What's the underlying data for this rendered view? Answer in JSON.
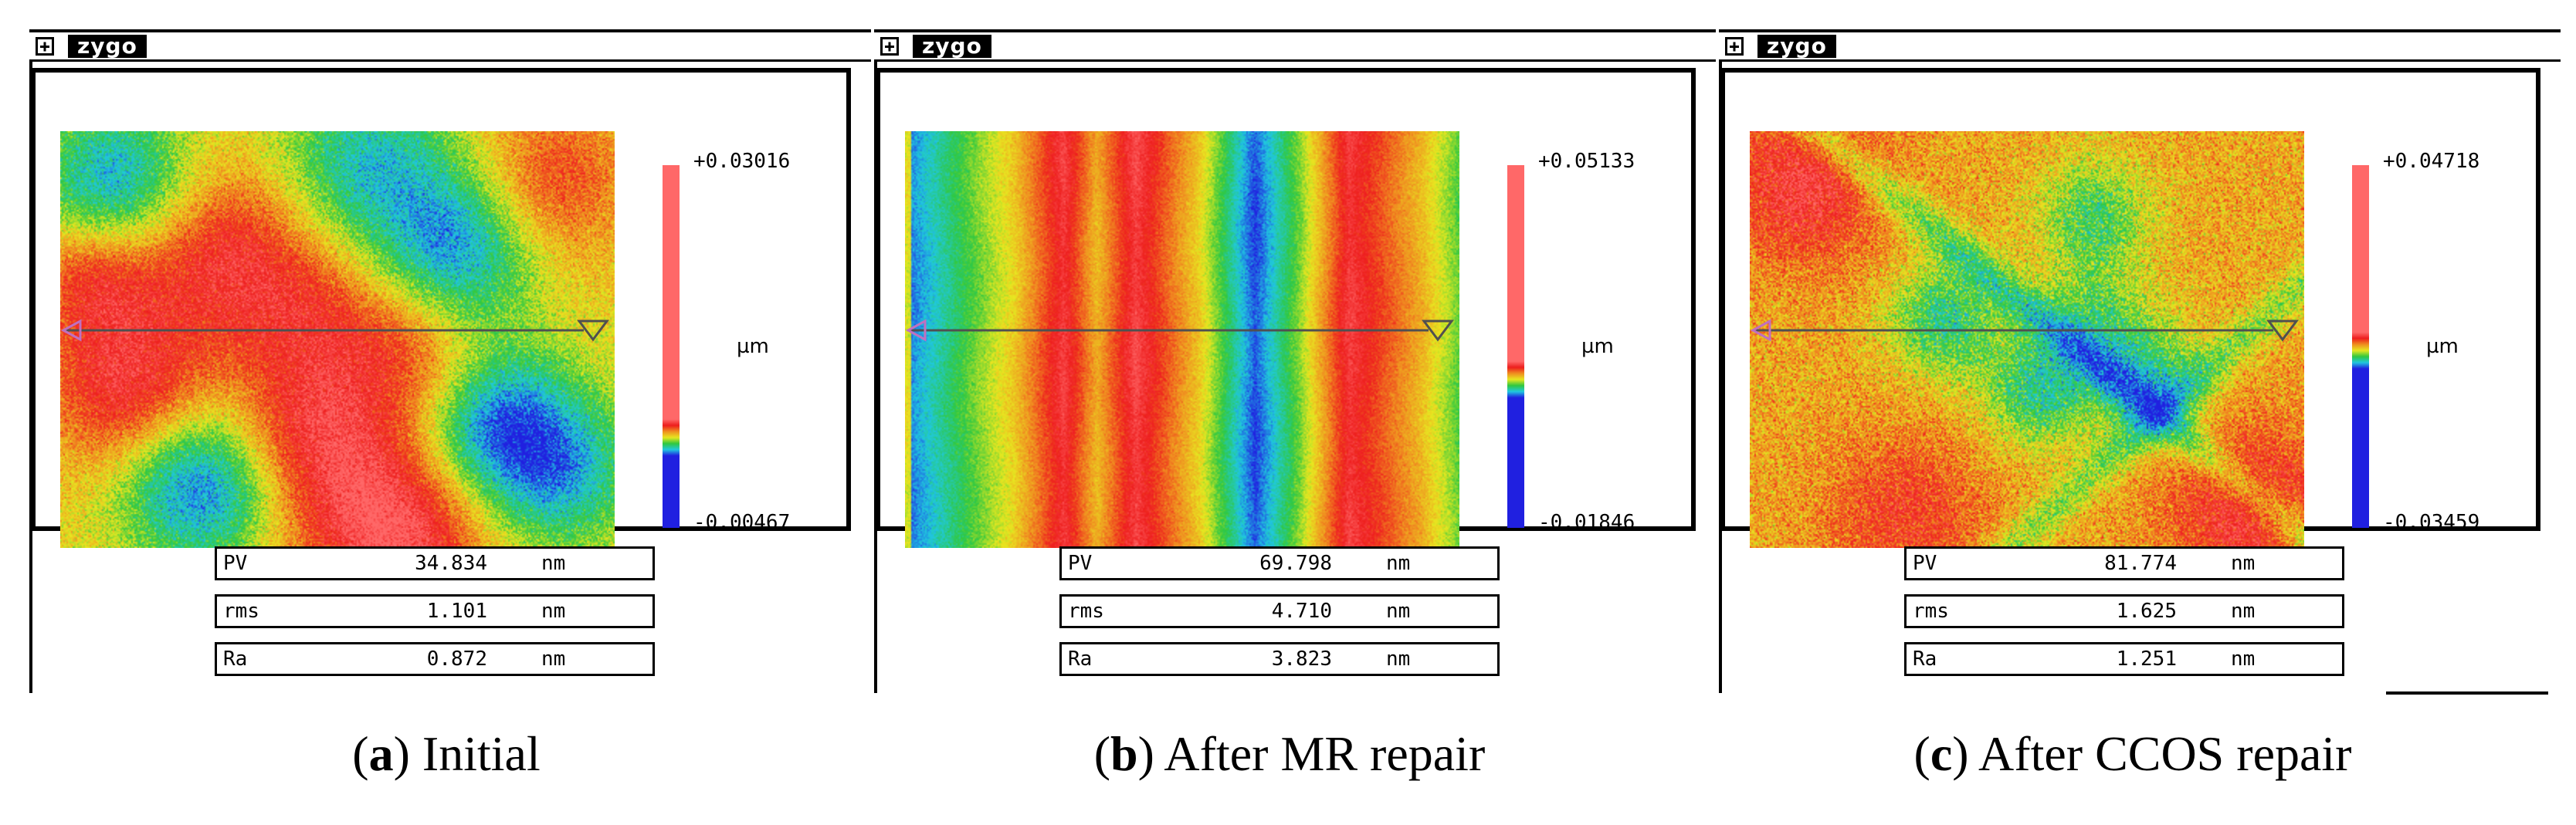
{
  "app_name": "zygo",
  "measurement_unit": "µm",
  "colors": {
    "scale": [
      "#2020e0",
      "#20c8e0",
      "#30c840",
      "#e8e820",
      "#f09020",
      "#ee1e1e",
      "#ff6868"
    ]
  },
  "panels": [
    {
      "id": "a",
      "pattern": "patchy",
      "scale": {
        "max": "+0.03016",
        "min": "-0.00467",
        "unit": "µm",
        "boundary_fraction": 0.26
      },
      "stats": [
        {
          "name": "PV",
          "value": "34.834",
          "unit": "nm"
        },
        {
          "name": "rms",
          "value": "1.101",
          "unit": "nm"
        },
        {
          "name": "Ra",
          "value": "0.872",
          "unit": "nm"
        }
      ],
      "caption": {
        "letter": "a",
        "text": " Initial"
      }
    },
    {
      "id": "b",
      "pattern": "vertical-stripes",
      "scale": {
        "max": "+0.05133",
        "min": "-0.01846",
        "unit": "µm",
        "boundary_fraction": 0.42
      },
      "stats": [
        {
          "name": "PV",
          "value": "69.798",
          "unit": "nm"
        },
        {
          "name": "rms",
          "value": "4.710",
          "unit": "nm"
        },
        {
          "name": "Ra",
          "value": "3.823",
          "unit": "nm"
        }
      ],
      "caption": {
        "letter": "b",
        "text": " After MR repair"
      }
    },
    {
      "id": "c",
      "pattern": "noisy",
      "scale": {
        "max": "+0.04718",
        "min": "-0.03459",
        "unit": "µm",
        "boundary_fraction": 0.5
      },
      "stats": [
        {
          "name": "PV",
          "value": "81.774",
          "unit": "nm"
        },
        {
          "name": "rms",
          "value": "1.625",
          "unit": "nm"
        },
        {
          "name": "Ra",
          "value": "1.251",
          "unit": "nm"
        }
      ],
      "caption": {
        "letter": "c",
        "text": " After CCOS repair"
      }
    }
  ]
}
